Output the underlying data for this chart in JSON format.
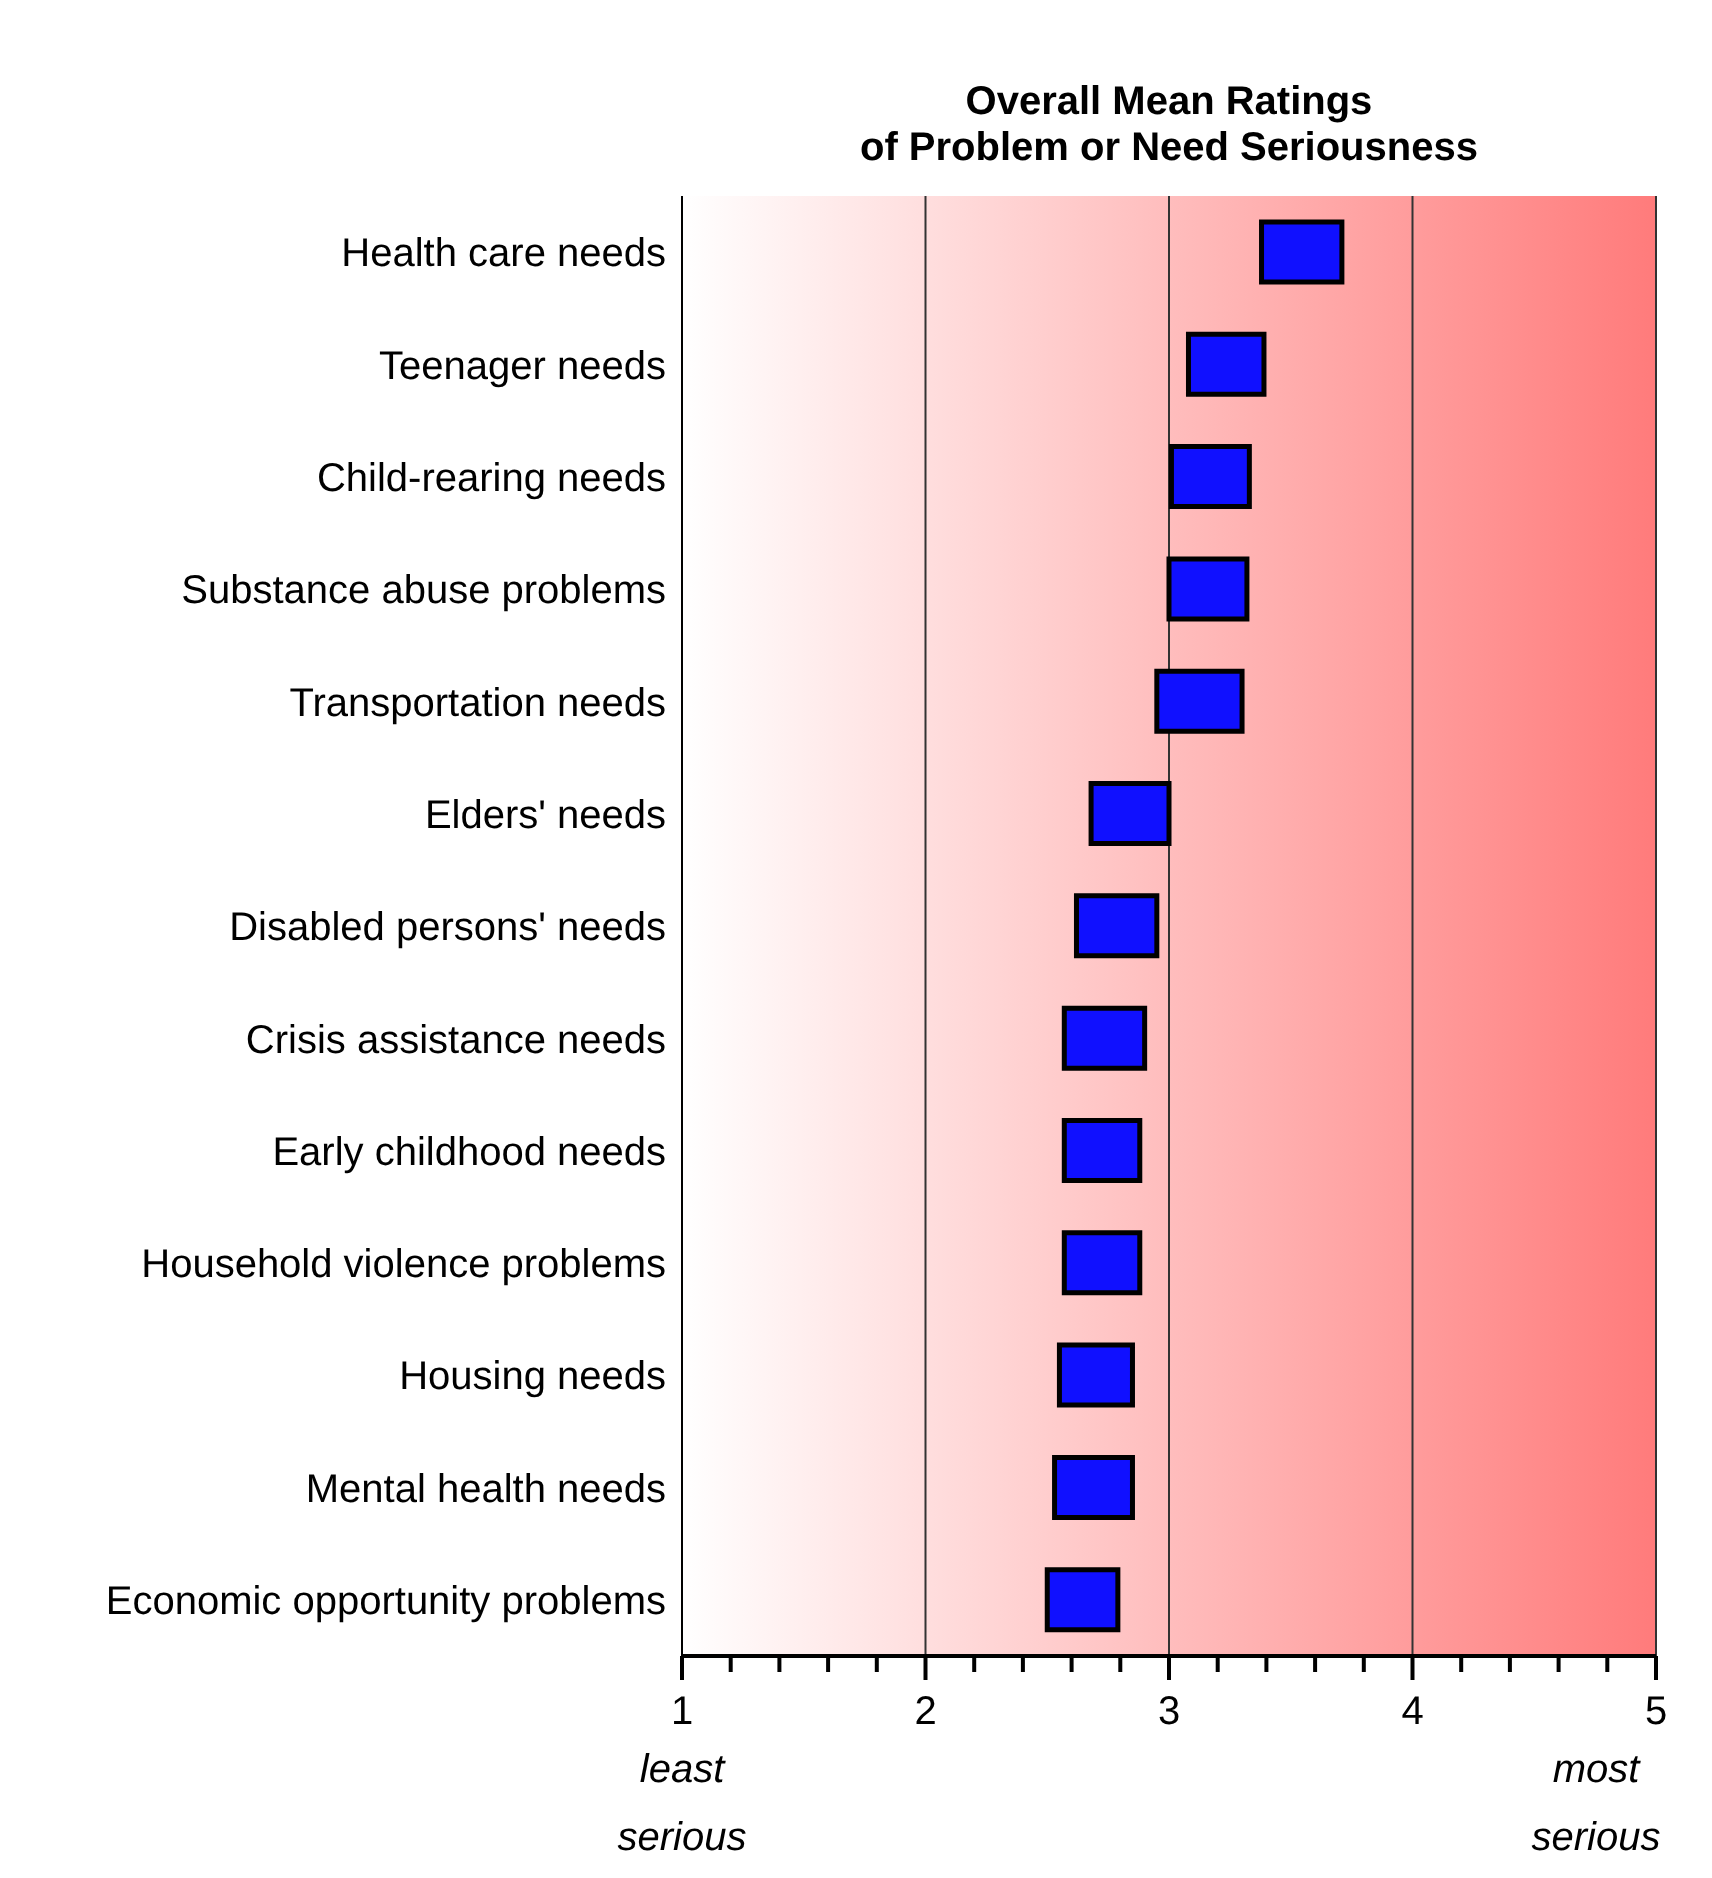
{
  "chart_data": {
    "type": "bar",
    "orientation": "horizontal",
    "title": "Overall Mean Ratings\nof Problem or Need Seriousness",
    "categories": [
      "Health care needs",
      "Teenager needs",
      "Child-rearing needs",
      "Substance abuse problems",
      "Transportation needs",
      "Elders' needs",
      "Disabled persons' needs",
      "Crisis assistance needs",
      "Early childhood needs",
      "Household violence problems",
      "Housing needs",
      "Mental health needs",
      "Economic opportunity problems"
    ],
    "base": [
      3.38,
      3.08,
      3.01,
      3.0,
      2.95,
      2.68,
      2.62,
      2.57,
      2.57,
      2.57,
      2.55,
      2.53,
      2.5
    ],
    "values": [
      0.33,
      0.31,
      0.32,
      0.32,
      0.35,
      0.32,
      0.33,
      0.33,
      0.31,
      0.31,
      0.3,
      0.32,
      0.29
    ],
    "color": "#1010ff",
    "xlim": [
      1,
      5
    ],
    "xticks": [
      1,
      {
        "value": 1.2,
        "label": null
      },
      {
        "value": 1.4,
        "label": null
      },
      {
        "value": 1.6,
        "label": null
      },
      {
        "value": 1.8,
        "label": null
      },
      2,
      {
        "value": 2.2,
        "label": null
      },
      {
        "value": 2.4,
        "label": null
      },
      {
        "value": 2.6,
        "label": null
      },
      {
        "value": 2.8,
        "label": null
      },
      3,
      {
        "value": 3.2,
        "label": null
      },
      {
        "value": 3.4,
        "label": null
      },
      {
        "value": 3.6,
        "label": null
      },
      {
        "value": 3.8,
        "label": null
      },
      4,
      {
        "value": 4.2,
        "label": null
      },
      {
        "value": 4.4,
        "label": null
      },
      {
        "value": 4.6,
        "label": null
      },
      {
        "value": 4.8,
        "label": null
      },
      5
    ],
    "grid": "x",
    "annotations": [
      "least serious",
      "most serious"
    ]
  }
}
